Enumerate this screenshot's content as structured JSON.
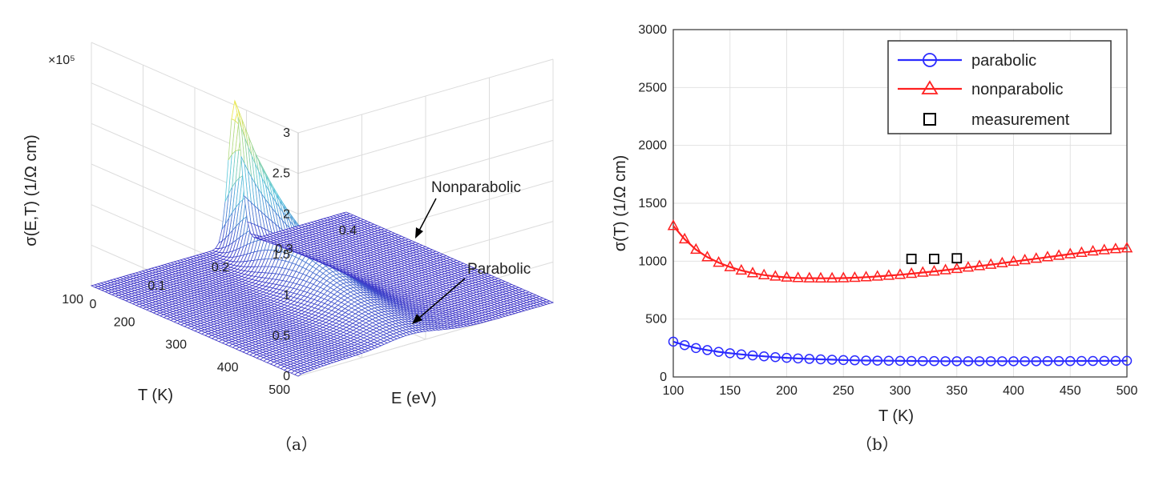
{
  "chart_data": [
    {
      "type": "surface",
      "zlabel": "σ(E,T) (1/Ω cm)",
      "zexponent": "×10⁵",
      "xlabel": "E (eV)",
      "ylabel": "T (K)",
      "zticks": [
        "0",
        "0.5",
        "1",
        "1.5",
        "2",
        "2.5",
        "3"
      ],
      "eticks": [
        "0",
        "0.1",
        "0.2",
        "0.3",
        "0.4"
      ],
      "tticks": [
        "100",
        "200",
        "300",
        "400",
        "500"
      ],
      "elim": [
        0,
        0.4
      ],
      "tlim": [
        100,
        500
      ],
      "zlim": [
        0,
        3
      ],
      "annotations": [
        "Nonparabolic",
        "Parabolic"
      ],
      "caption": "（a）",
      "colors": {
        "low": "#3b32c8",
        "high": "#f5e83a"
      }
    },
    {
      "type": "line",
      "xlabel": "T (K)",
      "ylabel": "σ(T) (1/Ω cm)",
      "xlim": [
        100,
        500
      ],
      "ylim": [
        0,
        3000
      ],
      "xticks": [
        "100",
        "150",
        "200",
        "250",
        "300",
        "350",
        "400",
        "450",
        "500"
      ],
      "yticks": [
        "0",
        "500",
        "1000",
        "1500",
        "2000",
        "2500",
        "3000"
      ],
      "grid": true,
      "legend_position": "top-right",
      "caption": "（b）",
      "series": [
        {
          "name": "parabolic",
          "marker": "circle",
          "color": "#2b2bff",
          "x": [
            100,
            110,
            120,
            130,
            140,
            150,
            160,
            170,
            180,
            190,
            200,
            210,
            220,
            230,
            240,
            250,
            260,
            270,
            280,
            290,
            300,
            310,
            320,
            330,
            340,
            350,
            360,
            370,
            380,
            390,
            400,
            410,
            420,
            430,
            440,
            450,
            460,
            470,
            480,
            490,
            500
          ],
          "y": [
            305,
            275,
            250,
            232,
            217,
            205,
            195,
            186,
            178,
            171,
            165,
            160,
            156,
            152,
            149,
            146,
            144,
            142,
            141,
            140,
            139,
            138,
            137,
            137,
            136,
            136,
            136,
            136,
            136,
            136,
            136,
            136,
            136,
            137,
            137,
            137,
            138,
            138,
            139,
            139,
            140
          ]
        },
        {
          "name": "nonparabolic",
          "marker": "triangle",
          "color": "#ff2020",
          "x": [
            100,
            110,
            120,
            130,
            140,
            150,
            160,
            170,
            180,
            190,
            200,
            210,
            220,
            230,
            240,
            250,
            260,
            270,
            280,
            290,
            300,
            310,
            320,
            330,
            340,
            350,
            360,
            370,
            380,
            390,
            400,
            410,
            420,
            430,
            440,
            450,
            460,
            470,
            480,
            490,
            500
          ],
          "y": [
            1305,
            1190,
            1100,
            1035,
            988,
            950,
            920,
            897,
            880,
            868,
            860,
            855,
            853,
            852,
            852,
            854,
            857,
            862,
            868,
            875,
            883,
            892,
            902,
            912,
            923,
            934,
            946,
            958,
            970,
            983,
            996,
            1009,
            1022,
            1035,
            1048,
            1061,
            1073,
            1085,
            1096,
            1105,
            1112
          ]
        },
        {
          "name": "measurement",
          "marker": "square",
          "color": "#000000",
          "x": [
            310,
            330,
            350
          ],
          "y": [
            1020,
            1020,
            1025
          ]
        }
      ]
    }
  ]
}
